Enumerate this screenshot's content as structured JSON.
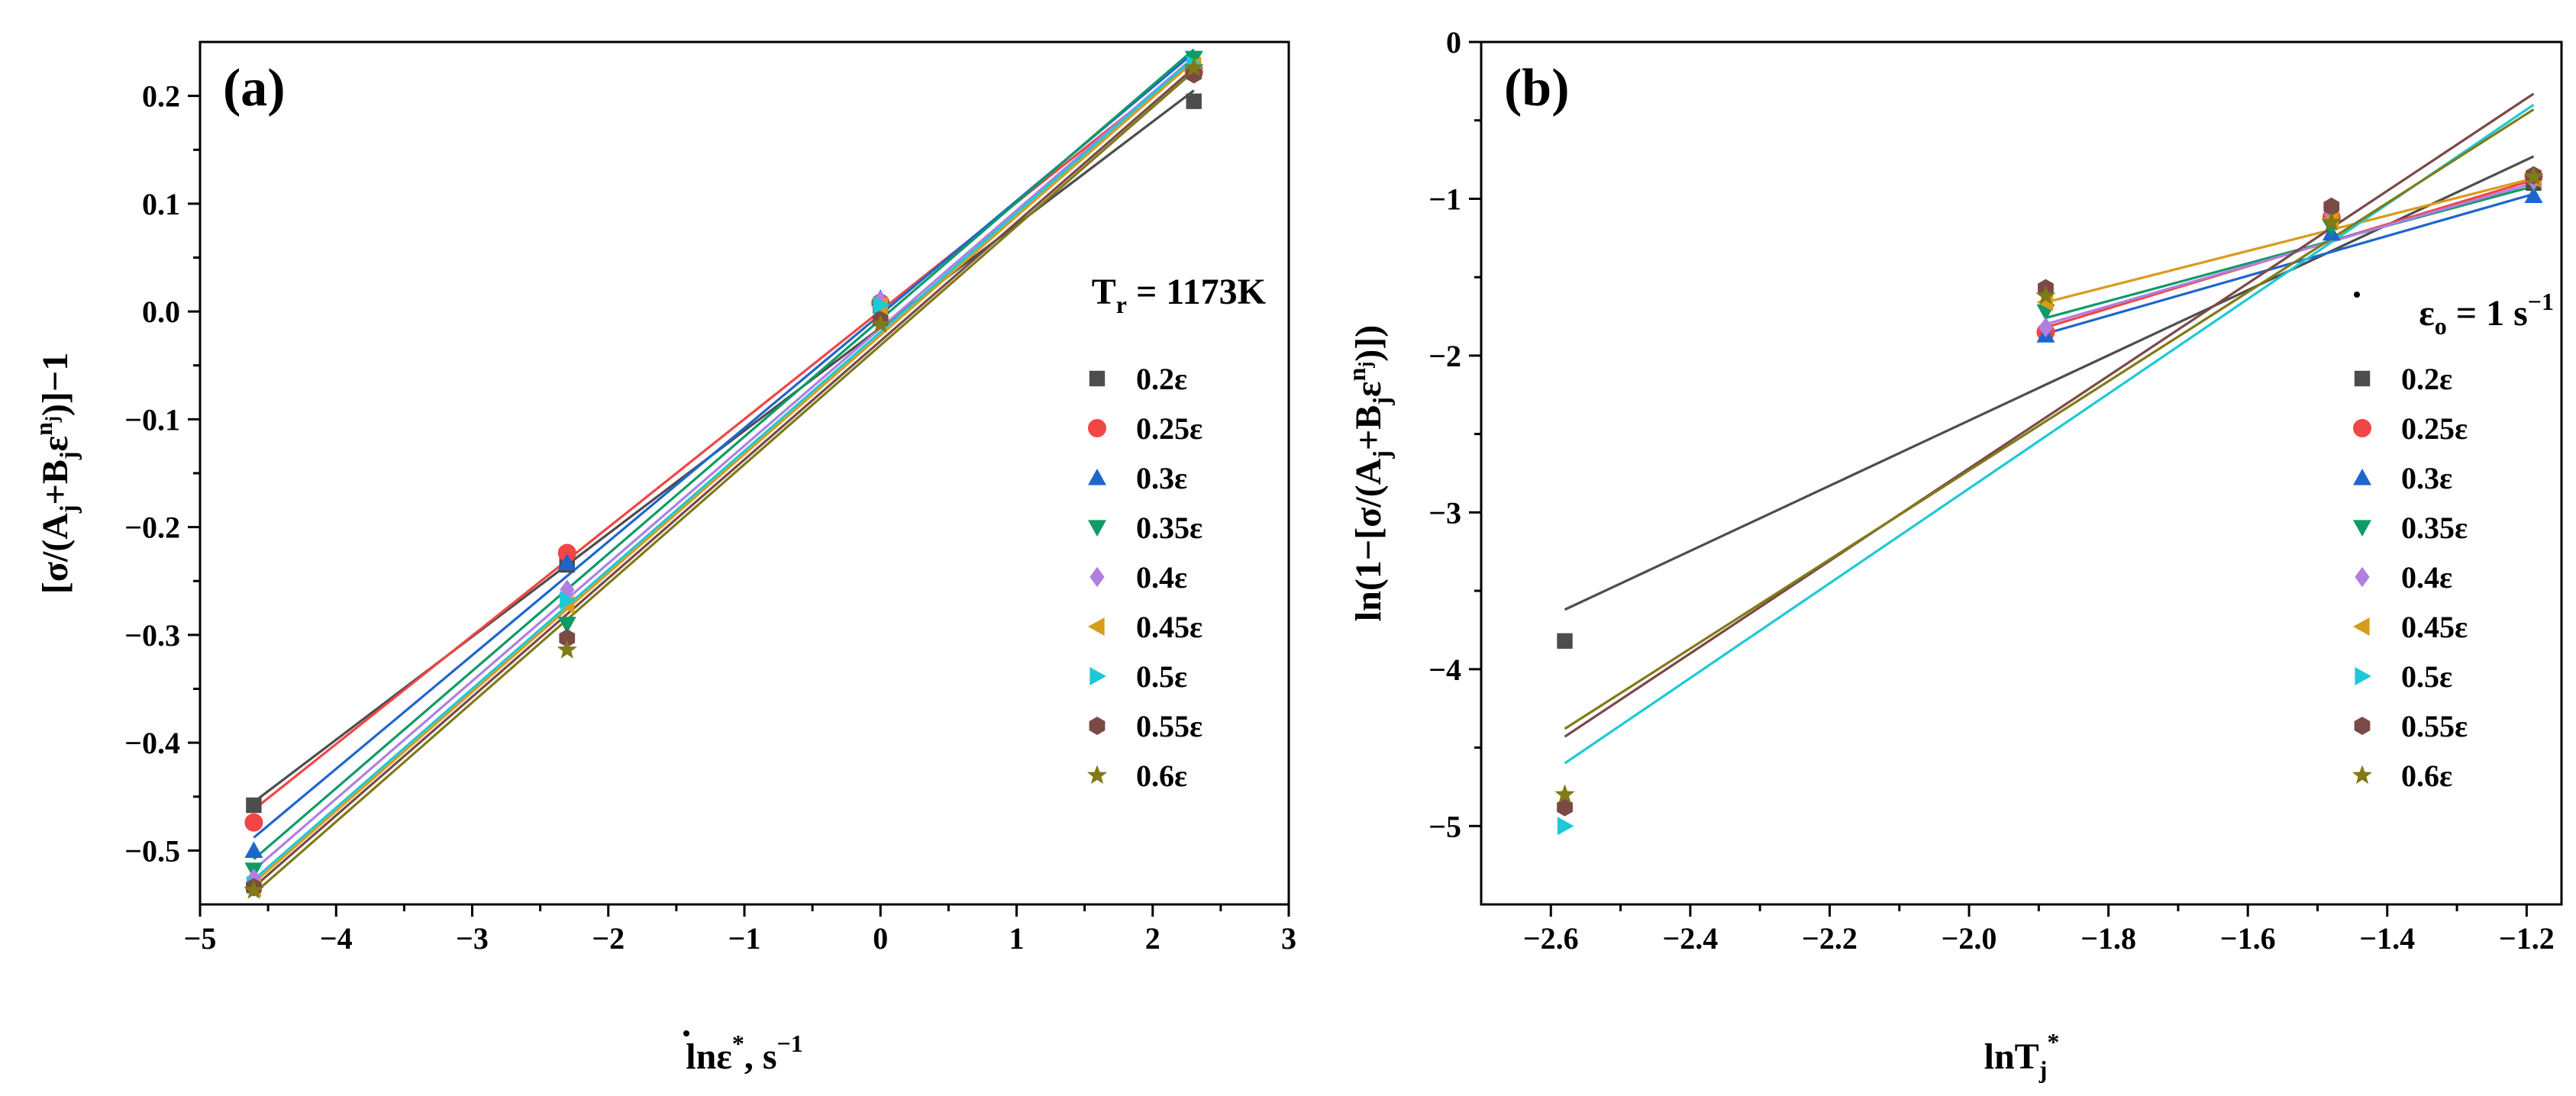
{
  "colors": {
    "0.2ε": "#4d4d4d",
    "0.25ε": "#f24545",
    "0.3ε": "#1f66cc",
    "0.35ε": "#0f9a66",
    "0.4ε": "#b07fdf",
    "0.45ε": "#d89c1c",
    "0.5ε": "#1cc9d6",
    "0.55ε": "#7a4a46",
    "0.6ε": "#807a17"
  },
  "chart_data": [
    {
      "type": "scatter",
      "panel": "(a)",
      "title": "",
      "annotation": "T_r = 1173K",
      "annotation_parts": {
        "base": "T",
        "sub": "r",
        "rest": " = 1173K"
      },
      "xlabel": "lnε̇*, s⁻¹",
      "xlabel_parts": {
        "pre": "lnε",
        "sup1": "*",
        "mid": ", s",
        "sup2": "−1"
      },
      "ylabel": "[σ/(A_j+B_jε^nj)]−1",
      "ylabel_parts": {
        "a": "[σ/(A",
        "s1": "j",
        "b": "+B",
        "s2": "j",
        "c": "ε",
        "sup": "n",
        "supsub": "j",
        "d": ")]−1"
      },
      "xlim": [
        -5,
        3
      ],
      "ylim": [
        -0.55,
        0.25
      ],
      "xticks": [
        -5,
        -4,
        -3,
        -2,
        -1,
        0,
        1,
        2,
        3
      ],
      "xtick_labels": [
        "−5",
        "−4",
        "−3",
        "−2",
        "−1",
        "0",
        "1",
        "2",
        "3"
      ],
      "yticks": [
        -0.5,
        -0.4,
        -0.3,
        -0.2,
        -0.1,
        0.0,
        0.1,
        0.2
      ],
      "ytick_labels": [
        "−0.5",
        "−0.4",
        "−0.3",
        "−0.2",
        "−0.1",
        "0.0",
        "0.1",
        "0.2"
      ],
      "x": [
        -4.605,
        -2.303,
        0,
        2.303
      ],
      "legend_position": "right",
      "series": [
        {
          "name": "0.2ε",
          "marker": "square",
          "values": [
            -0.458,
            -0.235,
            0.005,
            0.195
          ],
          "fit": [
            [
              -4.605,
              -0.455
            ],
            [
              2.303,
              0.205
            ]
          ]
        },
        {
          "name": "0.25ε",
          "marker": "circle",
          "values": [
            -0.474,
            -0.224,
            0.008,
            0.222
          ],
          "fit": [
            [
              -4.605,
              -0.462
            ],
            [
              2.303,
              0.232
            ]
          ]
        },
        {
          "name": "0.3ε",
          "marker": "triangle-up",
          "values": [
            -0.5,
            -0.233,
            0.012,
            0.232
          ],
          "fit": [
            [
              -4.605,
              -0.488
            ],
            [
              2.303,
              0.24
            ]
          ]
        },
        {
          "name": "0.35ε",
          "marker": "triangle-down",
          "values": [
            -0.518,
            -0.29,
            0.003,
            0.235
          ],
          "fit": [
            [
              -4.605,
              -0.508
            ],
            [
              2.303,
              0.243
            ]
          ]
        },
        {
          "name": "0.4ε",
          "marker": "diamond",
          "values": [
            -0.526,
            -0.258,
            0.01,
            0.224
          ],
          "fit": [
            [
              -4.605,
              -0.518
            ],
            [
              2.303,
              0.236
            ]
          ]
        },
        {
          "name": "0.45ε",
          "marker": "triangle-left",
          "values": [
            -0.535,
            -0.272,
            0.005,
            0.228
          ],
          "fit": [
            [
              -4.605,
              -0.53
            ],
            [
              2.303,
              0.232
            ]
          ]
        },
        {
          "name": "0.5ε",
          "marker": "triangle-right",
          "values": [
            -0.532,
            -0.268,
            0.006,
            0.229
          ],
          "fit": [
            [
              -4.605,
              -0.527
            ],
            [
              2.303,
              0.235
            ]
          ]
        },
        {
          "name": "0.55ε",
          "marker": "hexagon",
          "values": [
            -0.534,
            -0.303,
            -0.008,
            0.22
          ],
          "fit": [
            [
              -4.605,
              -0.534
            ],
            [
              2.303,
              0.226
            ]
          ]
        },
        {
          "name": "0.6ε",
          "marker": "star",
          "values": [
            -0.537,
            -0.314,
            -0.012,
            0.226
          ],
          "fit": [
            [
              -4.605,
              -0.54
            ],
            [
              2.303,
              0.223
            ]
          ]
        }
      ]
    },
    {
      "type": "scatter",
      "panel": "(b)",
      "title": "",
      "annotation": "ε̇_o = 1 s⁻¹",
      "annotation_parts": {
        "base": "ε",
        "sub": "o",
        "rest": " = 1 s",
        "sup": "−1"
      },
      "xlabel": "lnT_j*",
      "xlabel_parts": {
        "pre": "lnT",
        "sub": "j",
        "sup": "*"
      },
      "ylabel": "ln(1−[σ/(A_j+B_jε^nj)])",
      "ylabel_parts": {
        "a": "ln(1−[σ/(A",
        "s1": "j",
        "b": "+B",
        "s2": "j",
        "c": "ε",
        "sup": "n",
        "supsub": "j",
        "d": ")])"
      },
      "xlim": [
        -2.7,
        -1.15
      ],
      "ylim": [
        -5.5,
        0
      ],
      "xticks": [
        -2.6,
        -2.4,
        -2.2,
        -2.0,
        -1.8,
        -1.6,
        -1.4,
        -1.2
      ],
      "xtick_labels": [
        "−2.6",
        "−2.4",
        "−2.2",
        "−2.0",
        "−1.8",
        "−1.6",
        "−1.4",
        "−1.2"
      ],
      "yticks": [
        -5,
        -4,
        -3,
        -2,
        -1,
        0
      ],
      "ytick_labels": [
        "−5",
        "−4",
        "−3",
        "−2",
        "−1",
        "0"
      ],
      "x": [
        -2.58,
        -1.89,
        -1.48,
        -1.19
      ],
      "legend_position": "right",
      "series": [
        {
          "name": "0.2ε",
          "marker": "square",
          "values": [
            -3.82,
            null,
            null,
            -0.9
          ],
          "fit": [
            [
              -2.58,
              -3.62
            ],
            [
              -1.19,
              -0.73
            ]
          ]
        },
        {
          "name": "0.25ε",
          "marker": "circle",
          "values": [
            null,
            -1.85,
            -1.12,
            -0.86
          ],
          "fit": [
            [
              -1.89,
              -1.82
            ],
            [
              -1.19,
              -0.88
            ]
          ]
        },
        {
          "name": "0.3ε",
          "marker": "triangle-up",
          "values": [
            null,
            -1.87,
            -1.22,
            -0.98
          ],
          "fit": [
            [
              -1.89,
              -1.86
            ],
            [
              -1.19,
              -0.97
            ]
          ]
        },
        {
          "name": "0.35ε",
          "marker": "triangle-down",
          "values": [
            null,
            -1.72,
            -1.18,
            -0.9
          ],
          "fit": [
            [
              -1.89,
              -1.76
            ],
            [
              -1.19,
              -0.92
            ]
          ]
        },
        {
          "name": "0.4ε",
          "marker": "diamond",
          "values": [
            null,
            -1.82,
            -1.1,
            -0.88
          ],
          "fit": [
            [
              -1.89,
              -1.8
            ],
            [
              -1.19,
              -0.9
            ]
          ]
        },
        {
          "name": "0.45ε",
          "marker": "triangle-left",
          "values": [
            null,
            -1.66,
            -1.13,
            -0.87
          ],
          "fit": [
            [
              -1.89,
              -1.66
            ],
            [
              -1.19,
              -0.87
            ]
          ]
        },
        {
          "name": "0.5ε",
          "marker": "triangle-right",
          "values": [
            -5.0,
            null,
            null,
            null
          ],
          "fit": [
            [
              -2.58,
              -4.6
            ],
            [
              -1.19,
              -0.4
            ]
          ]
        },
        {
          "name": "0.55ε",
          "marker": "hexagon",
          "values": [
            -4.88,
            -1.57,
            -1.05,
            -0.85
          ],
          "fit": [
            [
              -2.58,
              -4.43
            ],
            [
              -1.19,
              -0.33
            ]
          ]
        },
        {
          "name": "0.6ε",
          "marker": "star",
          "values": [
            -4.8,
            -1.62,
            -1.15,
            -0.86
          ],
          "fit": [
            [
              -2.58,
              -4.38
            ],
            [
              -1.19,
              -0.43
            ]
          ]
        }
      ]
    }
  ]
}
